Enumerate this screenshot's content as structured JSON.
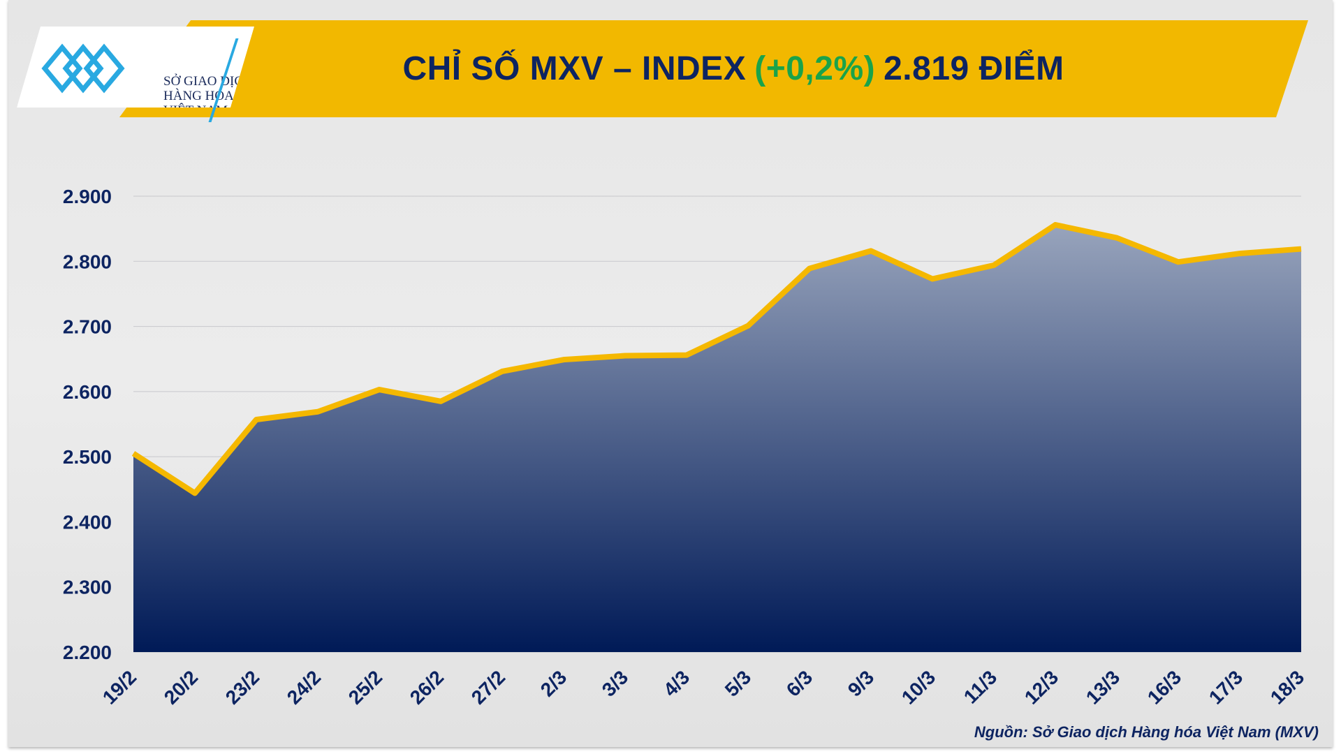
{
  "logo": {
    "lines": [
      "SỞ GIAO DỊCH",
      "HÀNG HÓA",
      "VIỆT NAM"
    ]
  },
  "header": {
    "title_prefix": "CHỈ SỐ MXV – INDEX",
    "change": "(+0,2%)",
    "value": "2.819 ĐIỂM"
  },
  "source": "Nguồn: Sở Giao dịch Hàng hóa Việt Nam (MXV)",
  "colors": {
    "banner": "#f2b800",
    "title": "#0d2461",
    "change": "#1aa34a",
    "line": "#f5b800",
    "area_top": "#98a4bc",
    "area_bottom": "#001a57"
  },
  "chart_data": {
    "type": "area",
    "title": "CHỈ SỐ MXV – INDEX (+0,2%) 2.819 ĐIỂM",
    "categories": [
      "19/2",
      "20/2",
      "23/2",
      "24/2",
      "25/2",
      "26/2",
      "27/2",
      "2/3",
      "3/3",
      "4/3",
      "5/3",
      "6/3",
      "9/3",
      "10/3",
      "11/3",
      "12/3",
      "13/3",
      "16/3",
      "17/3",
      "18/3"
    ],
    "values": [
      2505,
      2444,
      2557,
      2569,
      2603,
      2585,
      2631,
      2649,
      2655,
      2656,
      2701,
      2789,
      2816,
      2773,
      2794,
      2856,
      2836,
      2799,
      2812,
      2819
    ],
    "ylim": [
      2200,
      2900
    ],
    "yticks": [
      "2.200",
      "2.300",
      "2.400",
      "2.500",
      "2.600",
      "2.700",
      "2.800",
      "2.900"
    ],
    "grid": true,
    "legend": "none"
  }
}
